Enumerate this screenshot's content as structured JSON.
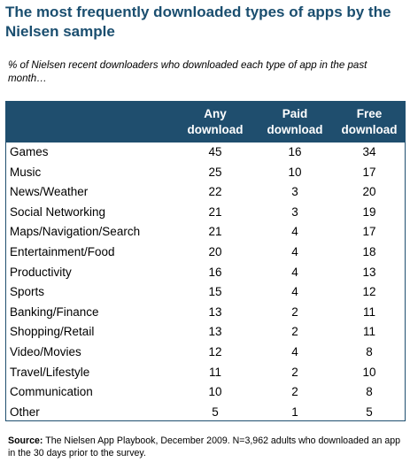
{
  "title": "The most frequently downloaded types of apps by the Nielsen sample",
  "subtitle": "% of Nielsen recent downloaders who downloaded each type of app in the past month…",
  "source_label": "Source:",
  "source_text": "The Nielsen App Playbook, December 2009. N=3,962 adults who downloaded an app in the 30 days prior to the survey.",
  "chart_data": {
    "type": "table",
    "columns": [
      "Any download",
      "Paid download",
      "Free download"
    ],
    "rows": [
      {
        "category": "Games",
        "values": [
          "45",
          "16",
          "34"
        ]
      },
      {
        "category": "Music",
        "values": [
          "25",
          "10",
          "17"
        ]
      },
      {
        "category": "News/Weather",
        "values": [
          "22",
          "3",
          "20"
        ]
      },
      {
        "category": "Social Networking",
        "values": [
          "21",
          "3",
          "19"
        ]
      },
      {
        "category": "Maps/Navigation/Search",
        "values": [
          "21",
          "4",
          "17"
        ]
      },
      {
        "category": "Entertainment/Food",
        "values": [
          "20",
          "4",
          "18"
        ]
      },
      {
        "category": "Productivity",
        "values": [
          "16",
          "4",
          "13"
        ]
      },
      {
        "category": "Sports",
        "values": [
          "15",
          "4",
          "12"
        ]
      },
      {
        "category": "Banking/Finance",
        "values": [
          "13",
          "2",
          "11"
        ]
      },
      {
        "category": "Shopping/Retail",
        "values": [
          "13",
          "2",
          "11"
        ]
      },
      {
        "category": "Video/Movies",
        "values": [
          "12",
          "4",
          "8"
        ]
      },
      {
        "category": "Travel/Lifestyle",
        "values": [
          "11",
          "2",
          "10"
        ]
      },
      {
        "category": "Communication",
        "values": [
          "10",
          "2",
          "8"
        ]
      },
      {
        "category": "Other",
        "values": [
          "5",
          "1",
          "5"
        ]
      }
    ]
  }
}
